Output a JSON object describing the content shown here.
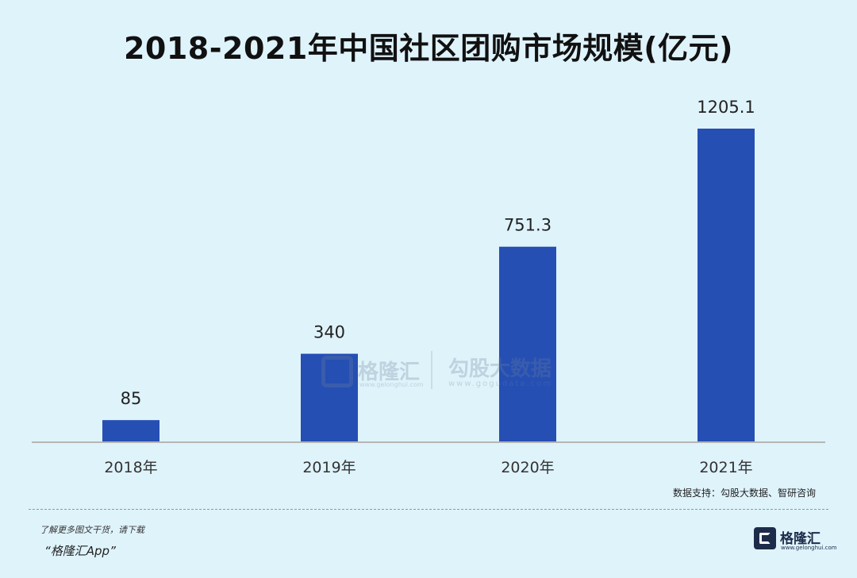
{
  "chart_data": {
    "type": "bar",
    "title": "2018-2021年中国社区团购市场规模(亿元)",
    "categories": [
      "2018年",
      "2019年",
      "2020年",
      "2021年"
    ],
    "values": [
      85,
      340,
      751.3,
      1205.1
    ],
    "value_labels": [
      "85",
      "340",
      "751.3",
      "1205.1"
    ],
    "ylim": [
      0,
      1300
    ],
    "bar_color": "#264fb4",
    "grid": false,
    "legend": "none"
  },
  "source": "数据支持：勾股大数据、智研咨询",
  "watermark": {
    "brand": "格隆汇",
    "brand_site": "www.gelonghui.com",
    "partner": "勾股大数据",
    "partner_site": "www.gogudata.com"
  },
  "footer": {
    "promo_line1": "了解更多图文干货，请下载",
    "promo_line2": "“格隆汇App”",
    "logo_text": "格隆汇",
    "logo_site": "www.gelonghui.com"
  },
  "colors": {
    "background": "#dff3fb",
    "bar": "#264fb4",
    "axis": "#b5b5b5"
  }
}
